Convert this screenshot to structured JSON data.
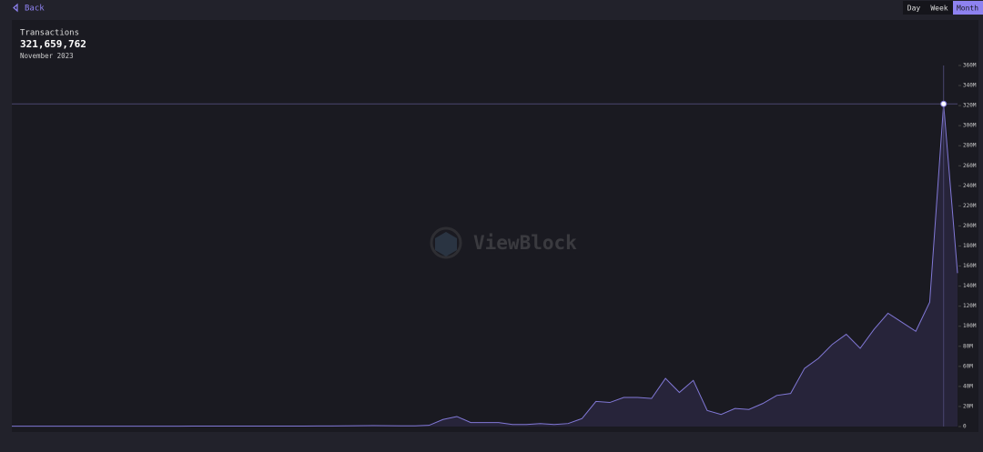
{
  "ui": {
    "back": "Back",
    "ranges": [
      "Day",
      "Week",
      "Month"
    ],
    "watermark": "ViewBlock"
  },
  "chart_data": {
    "type": "area",
    "categories": [
      null,
      null,
      null,
      null,
      null,
      null,
      null,
      null,
      null,
      null,
      null,
      null,
      null,
      null,
      null,
      null,
      null,
      null,
      null,
      null,
      null,
      null,
      null,
      null,
      null,
      null,
      null,
      null,
      null,
      null,
      null,
      null,
      null,
      null,
      null,
      null,
      null,
      null,
      null,
      null,
      null,
      null,
      null,
      null,
      null,
      null,
      null,
      null,
      null,
      null,
      null,
      null,
      null,
      null,
      null,
      null,
      null,
      null,
      null,
      null,
      null,
      null,
      null,
      null,
      null,
      null,
      null,
      "November 2023",
      null
    ],
    "series": [
      {
        "name": "Transactions",
        "color": "#8178d6",
        "values": [
          300000,
          300000,
          300000,
          300000,
          300000,
          300000,
          300000,
          300000,
          300000,
          300000,
          300000,
          300000,
          300000,
          400000,
          400000,
          400000,
          400000,
          500000,
          500000,
          500000,
          500000,
          500000,
          600000,
          600000,
          700000,
          800000,
          900000,
          800000,
          700000,
          700000,
          1200000,
          7000000,
          10000000,
          4000000,
          4000000,
          4000000,
          2000000,
          2000000,
          3000000,
          2000000,
          3000000,
          8000000,
          25000000,
          24000000,
          29000000,
          29000000,
          28000000,
          48000000,
          34000000,
          46000000,
          16000000,
          12000000,
          18000000,
          17000000,
          23000000,
          31000000,
          33000000,
          58000000,
          68000000,
          82000000,
          92000000,
          78000000,
          97000000,
          113000000,
          104000000,
          95000000,
          124000000,
          321659762,
          153000000
        ],
        "value_labels": [
          null,
          null,
          null,
          null,
          null,
          null,
          null,
          null,
          null,
          null,
          null,
          null,
          null,
          null,
          null,
          null,
          null,
          null,
          null,
          null,
          null,
          null,
          null,
          null,
          null,
          null,
          null,
          null,
          null,
          null,
          null,
          null,
          null,
          null,
          null,
          null,
          null,
          null,
          null,
          null,
          null,
          null,
          null,
          null,
          null,
          null,
          null,
          null,
          null,
          null,
          null,
          null,
          null,
          null,
          null,
          null,
          null,
          null,
          null,
          null,
          null,
          null,
          null,
          null,
          null,
          null,
          null,
          "321,659,762",
          null
        ]
      }
    ],
    "ylim": [
      0,
      360000000
    ],
    "yticks": [
      0,
      {
        "value": 20000000,
        "label": "20M"
      },
      {
        "value": 40000000,
        "label": "40M"
      },
      {
        "value": 60000000,
        "label": "60M"
      },
      {
        "value": 80000000,
        "label": "80M"
      },
      {
        "value": 100000000,
        "label": "100M"
      },
      {
        "value": 120000000,
        "label": "120M"
      },
      {
        "value": 140000000,
        "label": "140M"
      },
      {
        "value": 160000000,
        "label": "160M"
      },
      {
        "value": 180000000,
        "label": "180M"
      },
      {
        "value": 200000000,
        "label": "200M"
      },
      {
        "value": 220000000,
        "label": "220M"
      },
      {
        "value": 240000000,
        "label": "240M"
      },
      {
        "value": 260000000,
        "label": "260M"
      },
      {
        "value": 280000000,
        "label": "280M"
      },
      {
        "value": 300000000,
        "label": "300M"
      },
      {
        "value": 320000000,
        "label": "320M"
      },
      {
        "value": 340000000,
        "label": "340M"
      },
      {
        "value": 360000000,
        "label": "360M"
      }
    ],
    "grid": false
  }
}
